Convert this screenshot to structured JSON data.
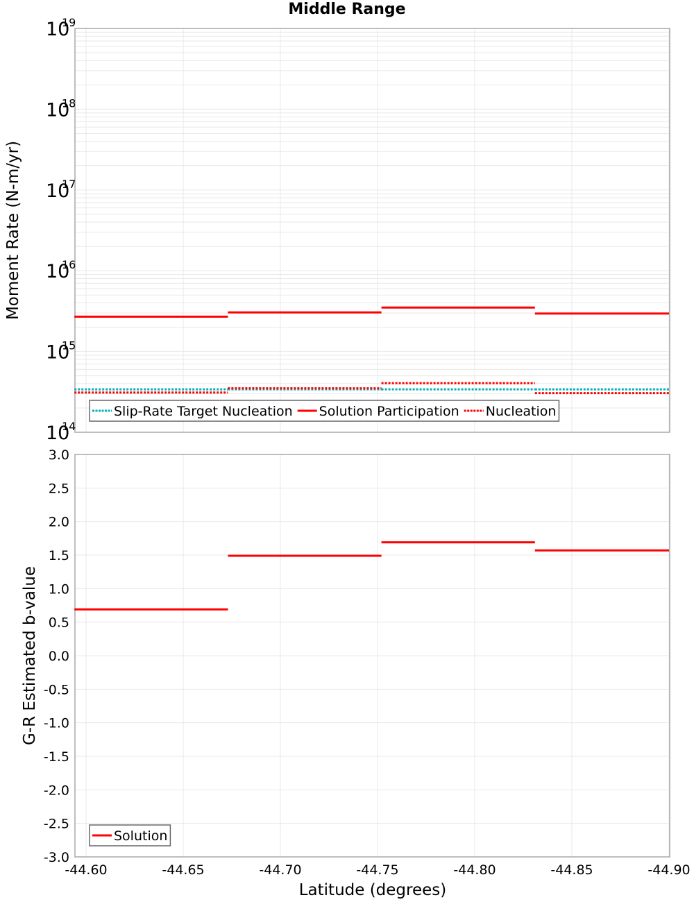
{
  "title": "Middle Range",
  "colors": {
    "solution": "#ff0000",
    "nucleation": "#ff0000",
    "slip_rate_target": "#00b0b8",
    "grid": "#e8e8e8",
    "axis": "#a8a8a8",
    "legend_border": "#666666"
  },
  "x_axis": {
    "label": "Latitude (degrees)",
    "ticks": [
      "-44.60",
      "-44.65",
      "-44.70",
      "-44.75",
      "-44.80",
      "-44.85",
      "-44.90"
    ],
    "tick_values": [
      -44.6,
      -44.65,
      -44.7,
      -44.75,
      -44.8,
      -44.85,
      -44.9
    ],
    "range": [
      -44.594,
      -44.9
    ]
  },
  "chart_data": [
    {
      "type": "line",
      "title": "Middle Range",
      "xlabel": "Latitude (degrees)",
      "ylabel": "Moment Rate (N-m/yr)",
      "yscale": "log",
      "ylim": [
        100000000000000.0,
        1e+19
      ],
      "y_ticks": [
        "10^14",
        "10^15",
        "10^16",
        "10^17",
        "10^18",
        "10^19"
      ],
      "grid": true,
      "legend_position": "lower-left",
      "bins": [
        [
          -44.594,
          -44.673
        ],
        [
          -44.673,
          -44.752
        ],
        [
          -44.752,
          -44.831
        ],
        [
          -44.831,
          -44.9
        ]
      ],
      "series": [
        {
          "name": "Slip-Rate Target Nucleation",
          "style": "dotted",
          "color": "#00b0b8",
          "values": [
            340000000000000.0,
            340000000000000.0,
            340000000000000.0,
            340000000000000.0
          ]
        },
        {
          "name": "Solution Participation",
          "style": "solid",
          "color": "#ff0000",
          "values": [
            2700000000000000.0,
            3050000000000000.0,
            3500000000000000.0,
            2950000000000000.0
          ]
        },
        {
          "name": "Nucleation",
          "style": "dotted",
          "color": "#ff0000",
          "values": [
            310000000000000.0,
            350000000000000.0,
            405000000000000.0,
            305000000000000.0
          ]
        }
      ]
    },
    {
      "type": "line",
      "xlabel": "Latitude (degrees)",
      "ylabel": "G-R Estimated b-value",
      "ylim": [
        -3.0,
        3.0
      ],
      "y_ticks": [
        "3.0",
        "2.5",
        "2.0",
        "1.5",
        "1.0",
        "0.5",
        "0.0",
        "-0.5",
        "-1.0",
        "-1.5",
        "-2.0",
        "-2.5",
        "-3.0"
      ],
      "grid": true,
      "legend_position": "lower-left",
      "bins": [
        [
          -44.594,
          -44.673
        ],
        [
          -44.673,
          -44.752
        ],
        [
          -44.752,
          -44.831
        ],
        [
          -44.831,
          -44.9
        ]
      ],
      "series": [
        {
          "name": "Solution",
          "style": "solid",
          "color": "#ff0000",
          "values": [
            0.69,
            1.49,
            1.69,
            1.57
          ]
        }
      ]
    }
  ]
}
